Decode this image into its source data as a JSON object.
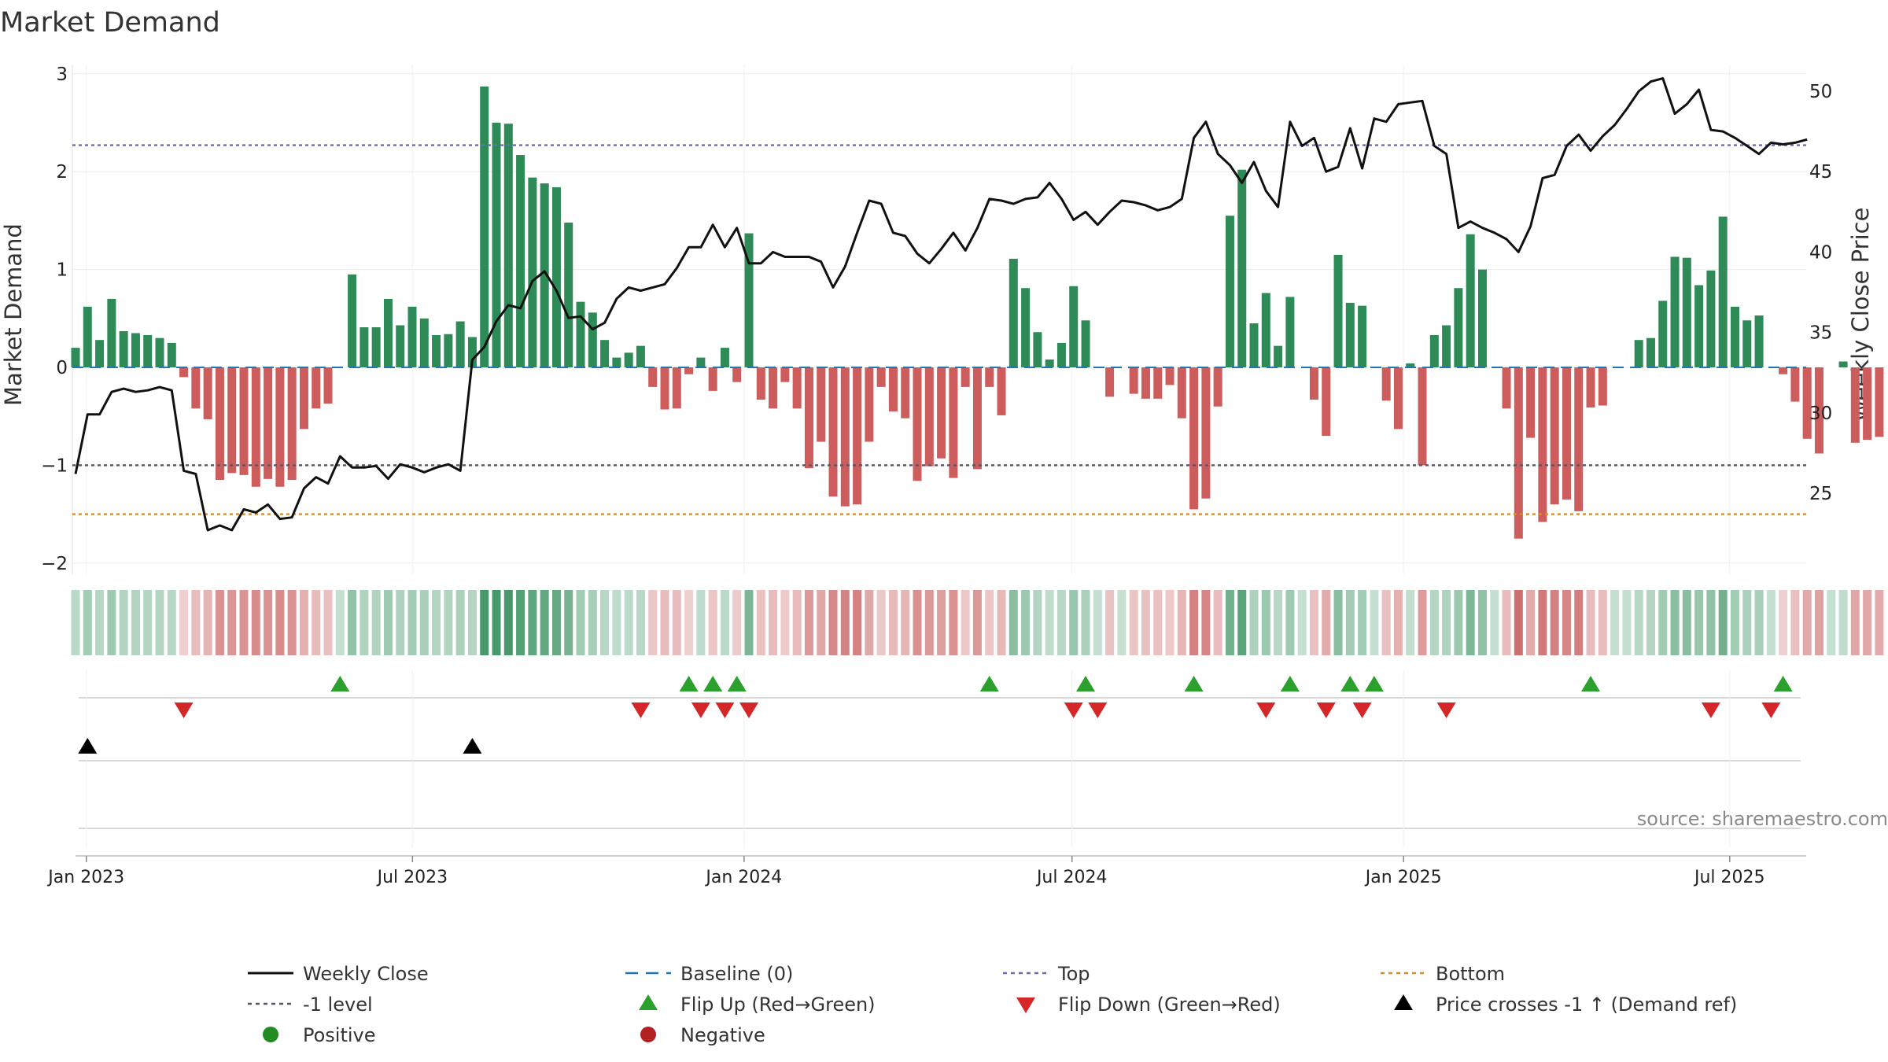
{
  "chart_data": {
    "type": "bar",
    "title": "Market Demand",
    "ylabel_left": "Market Demand",
    "ylabel_right": "Weekly Close Price",
    "ylim_left": [
      -2.05,
      3.1
    ],
    "ylim_right": [
      21.8,
      51.4
    ],
    "yticks_left": [
      -2,
      -1,
      0,
      1,
      2,
      3
    ],
    "ytick_labels_left": [
      "−2",
      "−1",
      "0",
      "1",
      "2",
      "3"
    ],
    "yticks_right": [
      25,
      30,
      35,
      40,
      45,
      50
    ],
    "ytick_labels_right": [
      "25",
      "30",
      "35",
      "40",
      "45",
      "50"
    ],
    "reference_lines": {
      "baseline": 0,
      "top": 2.27,
      "minus_one": -1,
      "bottom": -1.5
    },
    "x_start": "2022-12-26",
    "x_end": "2025-09-22",
    "x_ticks": [
      {
        "date": "2023-01-01",
        "label": "Jan 2023"
      },
      {
        "date": "2023-07-01",
        "label": "Jul 2023"
      },
      {
        "date": "2024-01-01",
        "label": "Jan 2024"
      },
      {
        "date": "2024-07-01",
        "label": "Jul 2024"
      },
      {
        "date": "2025-01-01",
        "label": "Jan 2025"
      },
      {
        "date": "2025-07-01",
        "label": "Jul 2025"
      }
    ],
    "demand": [
      0.2,
      0.62,
      0.28,
      0.7,
      0.37,
      0.35,
      0.33,
      0.3,
      0.25,
      -0.1,
      -0.42,
      -0.53,
      -1.15,
      -1.08,
      -1.1,
      -1.22,
      -1.14,
      -1.22,
      -1.15,
      -0.63,
      -0.42,
      -0.37,
      0,
      0.95,
      0.41,
      0.41,
      0.7,
      0.43,
      0.62,
      0.5,
      0.33,
      0.34,
      0.47,
      0.31,
      2.87,
      2.5,
      2.49,
      2.17,
      1.94,
      1.88,
      1.84,
      1.48,
      0.67,
      0.56,
      0.28,
      0.1,
      0.15,
      0.22,
      -0.2,
      -0.43,
      -0.42,
      -0.07,
      0.1,
      -0.24,
      0.2,
      -0.15,
      1.37,
      -0.33,
      -0.42,
      -0.15,
      -0.42,
      -1.03,
      -0.76,
      -1.32,
      -1.42,
      -1.4,
      -0.76,
      -0.2,
      -0.45,
      -0.52,
      -1.16,
      -1.01,
      -0.93,
      -1.13,
      -0.2,
      -1.04,
      -0.2,
      -0.49,
      1.11,
      0.81,
      0.36,
      0.08,
      0.25,
      0.83,
      0.48,
      0,
      -0.3,
      0,
      -0.27,
      -0.32,
      -0.32,
      -0.18,
      -0.52,
      -1.45,
      -1.34,
      -0.4,
      1.55,
      2.02,
      0.45,
      0.76,
      0.22,
      0.72,
      0,
      -0.33,
      -0.7,
      1.15,
      0.66,
      0.63,
      0,
      -0.34,
      -0.63,
      0.04,
      -1,
      0.33,
      0.43,
      0.81,
      1.36,
      1.0,
      0,
      -0.42,
      -1.75,
      -0.72,
      -1.58,
      -1.4,
      -1.35,
      -1.47,
      -0.41,
      -0.39,
      0,
      0,
      0.28,
      0.3,
      0.68,
      1.13,
      1.12,
      0.84,
      0.99,
      1.54,
      0.62,
      0.48,
      0.53,
      0,
      -0.07,
      -0.35,
      -0.73,
      -0.88,
      0,
      0.06,
      -0.77,
      -0.74,
      -0.71
    ],
    "weekly_close": [
      26.2,
      29.9,
      29.9,
      31.3,
      31.5,
      31.3,
      31.4,
      31.6,
      31.4,
      26.4,
      26.2,
      22.7,
      23.0,
      22.7,
      24.0,
      23.8,
      24.3,
      23.4,
      23.5,
      25.3,
      26.0,
      25.6,
      27.3,
      26.6,
      26.6,
      26.7,
      25.9,
      26.8,
      26.6,
      26.3,
      26.6,
      26.8,
      26.4,
      33.3,
      34.1,
      35.7,
      36.7,
      36.5,
      38.2,
      38.8,
      37.6,
      35.9,
      36.0,
      35.2,
      35.6,
      37.1,
      37.8,
      37.6,
      37.8,
      38.0,
      39.0,
      40.3,
      40.3,
      41.7,
      40.3,
      41.5,
      39.3,
      39.3,
      40.0,
      39.7,
      39.7,
      39.7,
      39.4,
      37.8,
      39.1,
      41.2,
      43.2,
      43.0,
      41.2,
      41.0,
      39.9,
      39.3,
      40.2,
      41.2,
      40.1,
      41.5,
      43.3,
      43.2,
      43.0,
      43.3,
      43.4,
      44.3,
      43.3,
      42.0,
      42.5,
      41.7,
      42.5,
      43.2,
      43.1,
      42.9,
      42.6,
      42.8,
      43.3,
      47.1,
      48.1,
      46.1,
      45.4,
      44.3,
      45.6,
      43.8,
      42.8,
      48.1,
      46.6,
      47.1,
      45.0,
      45.3,
      47.7,
      45.2,
      48.3,
      48.1,
      49.2,
      49.3,
      49.4,
      46.6,
      46.1,
      41.5,
      41.9,
      41.5,
      41.2,
      40.8,
      40.0,
      41.6,
      44.6,
      44.8,
      46.6,
      47.3,
      46.3,
      47.2,
      47.9,
      48.9,
      50.0,
      50.6,
      50.8,
      48.6,
      49.2,
      50.1,
      47.6,
      47.5,
      47.1,
      46.6,
      46.1,
      46.8,
      46.7,
      46.8,
      47.0
    ],
    "flip_up": [
      22,
      51,
      53,
      55,
      76,
      84,
      93,
      101,
      106,
      108,
      126,
      142
    ],
    "flip_down": [
      9,
      47,
      52,
      54,
      56,
      83,
      85,
      99,
      104,
      107,
      114,
      136,
      141
    ],
    "price_cross": [
      1,
      33
    ],
    "source": "source: sharemaestro.com",
    "legend": [
      {
        "label": "Weekly Close",
        "kind": "solid-line",
        "color": "#111111"
      },
      {
        "label": "Baseline (0)",
        "kind": "dashed-line",
        "color": "#1f77b4"
      },
      {
        "label": "Top",
        "kind": "dotted-line",
        "color": "#6b6bc0"
      },
      {
        "label": "Bottom",
        "kind": "dotted-line",
        "color": "#e08a1e"
      },
      {
        "label": "-1 level",
        "kind": "dotted-line",
        "color": "#555566"
      },
      {
        "label": "Flip Up (Red→Green)",
        "kind": "triangle-up",
        "color": "#2ca02c"
      },
      {
        "label": "Flip Down (Green→Red)",
        "kind": "triangle-down",
        "color": "#d62728"
      },
      {
        "label": "Price crosses -1 ↑ (Demand ref)",
        "kind": "triangle-up",
        "color": "#000000"
      },
      {
        "label": "Positive",
        "kind": "dot",
        "color": "#228b22"
      },
      {
        "label": "Negative",
        "kind": "dot",
        "color": "#b22222"
      }
    ],
    "colors": {
      "positive_bar": "#2e8b57",
      "negative_bar": "#cd5c5c",
      "weekly_close": "#111111",
      "baseline": "#1f77b4",
      "top": "#6b6bc0",
      "minus_one": "#555566",
      "bottom": "#e08a1e",
      "flip_up": "#2ca02c",
      "flip_down": "#d62728",
      "price_cross": "#000000"
    }
  }
}
